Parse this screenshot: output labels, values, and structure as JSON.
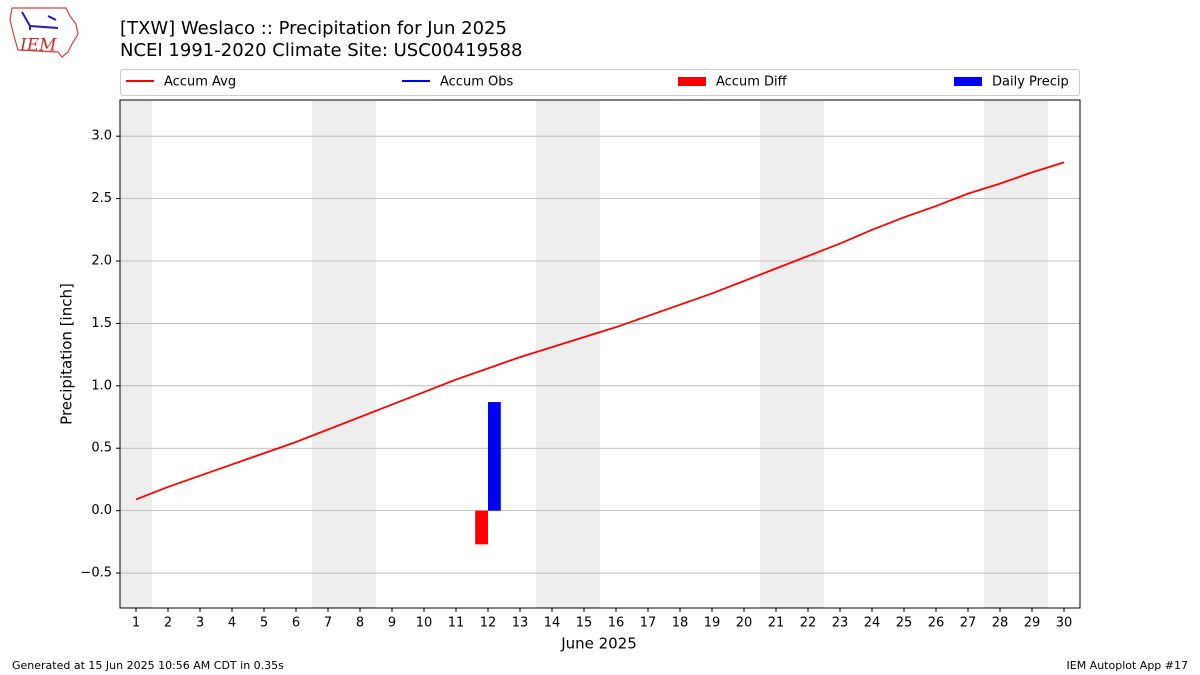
{
  "logo": "IEM",
  "footer_left": "Generated at 15 Jun 2025 10:56 AM CDT in 0.35s",
  "footer_right": "IEM Autoplot App #17",
  "chart_data": {
    "type": "line",
    "title": "[TXW] Weslaco :: Precipitation for Jun 2025",
    "subtitle": "NCEI 1991-2020 Climate Site: USC00419588",
    "x_label": "June 2025",
    "y_label": "Precipitation [inch]",
    "x": [
      1,
      2,
      3,
      4,
      5,
      6,
      7,
      8,
      9,
      10,
      11,
      12,
      13,
      14,
      15,
      16,
      17,
      18,
      19,
      20,
      21,
      22,
      23,
      24,
      25,
      26,
      27,
      28,
      29,
      30
    ],
    "series": [
      {
        "name": "Accum Avg",
        "color": "#ff0000",
        "kind": "line",
        "values": [
          0.09,
          0.19,
          0.28,
          0.37,
          0.46,
          0.55,
          0.65,
          0.75,
          0.85,
          0.95,
          1.05,
          1.14,
          1.23,
          1.31,
          1.39,
          1.47,
          1.56,
          1.65,
          1.74,
          1.84,
          1.94,
          2.04,
          2.14,
          2.25,
          2.35,
          2.44,
          2.54,
          2.62,
          2.71,
          2.79
        ]
      },
      {
        "name": "Accum Obs",
        "color": "#0000ff",
        "kind": "line",
        "values": [
          null,
          null,
          null,
          null,
          null,
          null,
          null,
          null,
          null,
          null,
          null,
          null,
          null,
          null,
          null,
          null,
          null,
          null,
          null,
          null,
          null,
          null,
          null,
          null,
          null,
          null,
          null,
          null,
          null,
          null
        ]
      },
      {
        "name": "Accum Diff",
        "color": "#ff0000",
        "kind": "bar",
        "offset": -0.2,
        "values": [
          null,
          null,
          null,
          null,
          null,
          null,
          null,
          null,
          null,
          null,
          null,
          -0.27,
          null,
          null,
          null,
          null,
          null,
          null,
          null,
          null,
          null,
          null,
          null,
          null,
          null,
          null,
          null,
          null,
          null,
          null
        ]
      },
      {
        "name": "Daily Precip",
        "color": "#0000ff",
        "kind": "bar",
        "offset": 0.2,
        "values": [
          null,
          null,
          null,
          null,
          null,
          null,
          null,
          null,
          null,
          null,
          null,
          0.87,
          null,
          null,
          null,
          null,
          null,
          null,
          null,
          null,
          null,
          null,
          null,
          null,
          null,
          null,
          null,
          null,
          null,
          null
        ]
      }
    ],
    "bar_width": 0.4,
    "shading": [
      [
        0.5,
        1.5
      ],
      [
        6.5,
        8.5
      ],
      [
        13.5,
        15.5
      ],
      [
        20.5,
        22.5
      ],
      [
        27.5,
        29.5
      ]
    ],
    "shading_color": "#eeeeee",
    "xlim": [
      0.5,
      30.5
    ],
    "ylim": [
      -0.78,
      3.29
    ],
    "xticks": [
      1,
      2,
      3,
      4,
      5,
      6,
      7,
      8,
      9,
      10,
      11,
      12,
      13,
      14,
      15,
      16,
      17,
      18,
      19,
      20,
      21,
      22,
      23,
      24,
      25,
      26,
      27,
      28,
      29,
      30
    ],
    "yticks": [
      {
        "value": -0.5,
        "label": "−0.5"
      },
      {
        "value": 0,
        "label": "0.0"
      },
      {
        "value": 0.5,
        "label": "0.5"
      },
      {
        "value": 1,
        "label": "1.0"
      },
      {
        "value": 1.5,
        "label": "1.5"
      },
      {
        "value": 2,
        "label": "2.0"
      },
      {
        "value": 2.5,
        "label": "2.5"
      },
      {
        "value": 3,
        "label": "3.0"
      }
    ],
    "grid": true,
    "legend": "top"
  }
}
